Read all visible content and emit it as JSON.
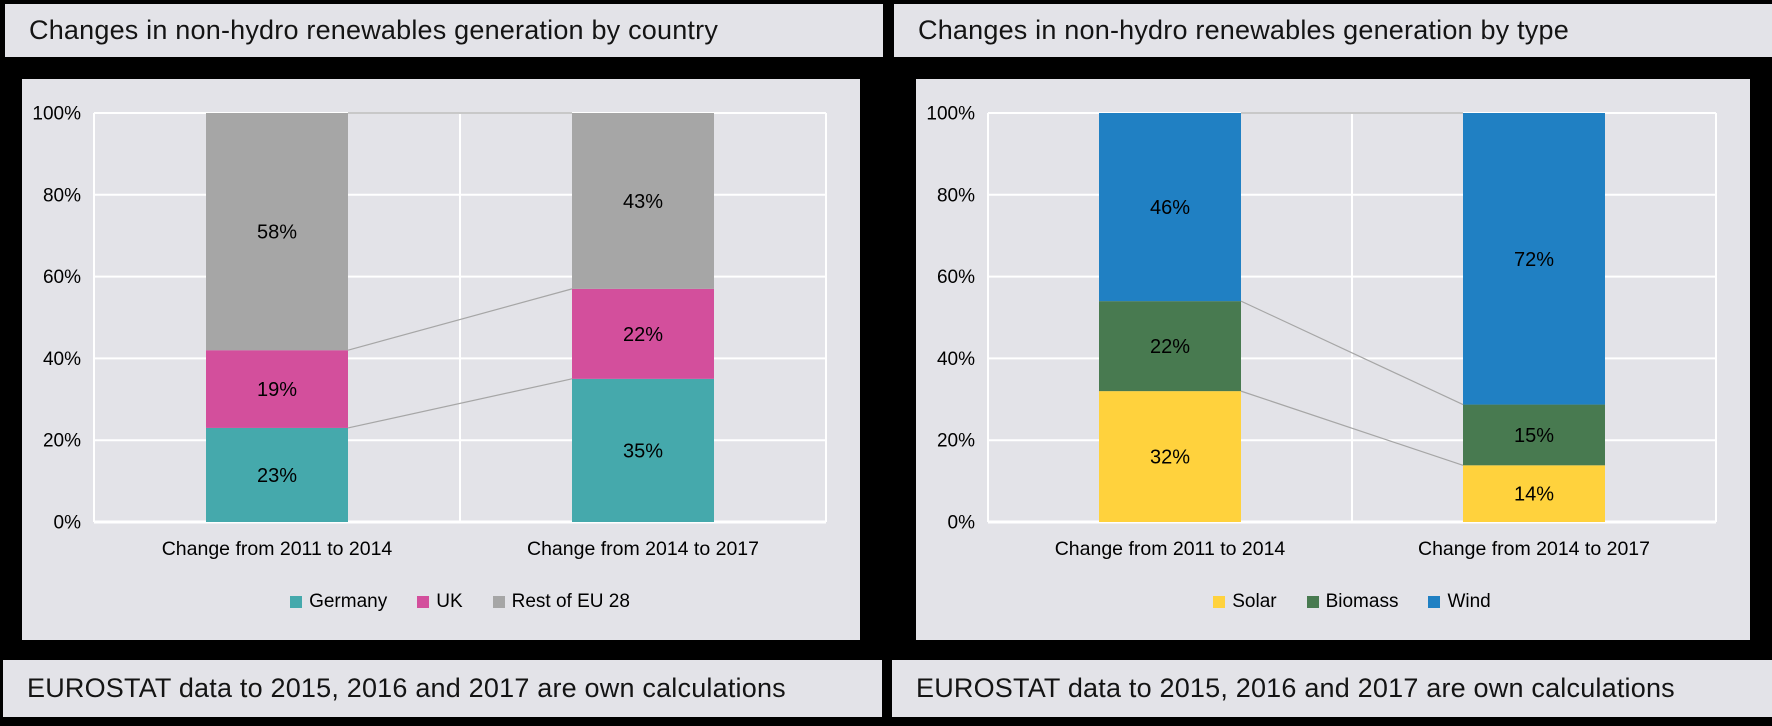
{
  "panels": [
    {
      "title": "Changes in non-hydro renewables generation by country",
      "footer": "EUROSTAT data to 2015, 2016 and 2017 are own calculations"
    },
    {
      "title": "Changes in non-hydro renewables generation by type",
      "footer": "EUROSTAT data to 2015, 2016 and 2017 are own calculations"
    }
  ],
  "palette": {
    "background": "#000000",
    "panel": "#e3e3e8",
    "gridline": "#ffffff",
    "connector": "#a6a6a6",
    "label_text": "#000000",
    "title_text": "#141414"
  },
  "chart_data": [
    {
      "type": "bar",
      "subtype": "stacked-100-percent",
      "title": "Changes in non-hydro renewables generation by country",
      "categories": [
        "Change from 2011 to 2014",
        "Change from 2014 to 2017"
      ],
      "series": [
        {
          "name": "Germany",
          "values": [
            23,
            35
          ],
          "color": "#45a9ac"
        },
        {
          "name": "UK",
          "values": [
            19,
            22
          ],
          "color": "#d34f9c"
        },
        {
          "name": "Rest of EU 28",
          "values": [
            58,
            43
          ],
          "color": "#a6a6a6"
        }
      ],
      "data_label_format": "percent",
      "ylim": [
        0,
        100
      ],
      "yticks": [
        "0%",
        "20%",
        "40%",
        "60%",
        "80%",
        "100%"
      ],
      "grid": true,
      "series_connector_lines": true,
      "legend_position": "bottom"
    },
    {
      "type": "bar",
      "subtype": "stacked-100-percent",
      "title": "Changes in non-hydro renewables generation by type",
      "categories": [
        "Change from 2011 to 2014",
        "Change from 2014 to 2017"
      ],
      "series": [
        {
          "name": "Solar",
          "values": [
            32,
            14
          ],
          "color": "#ffd23d"
        },
        {
          "name": "Biomass",
          "values": [
            22,
            15
          ],
          "color": "#487a50"
        },
        {
          "name": "Wind",
          "values": [
            46,
            72
          ],
          "color": "#2080c3"
        }
      ],
      "data_label_format": "percent",
      "ylim": [
        0,
        100
      ],
      "yticks": [
        "0%",
        "20%",
        "40%",
        "60%",
        "80%",
        "100%"
      ],
      "grid": true,
      "series_connector_lines": true,
      "legend_position": "bottom"
    }
  ]
}
